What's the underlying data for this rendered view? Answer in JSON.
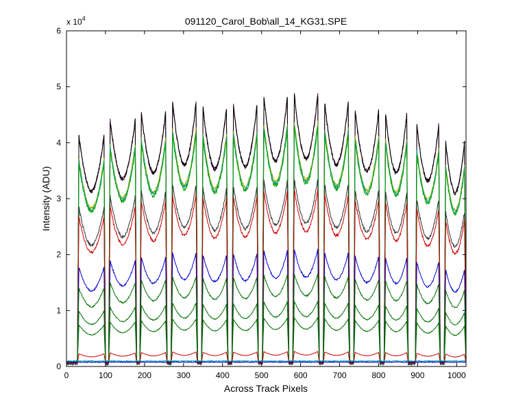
{
  "chart_data": {
    "type": "line",
    "title": "091120_Carol_Bob\\all_14_KG31.SPE",
    "xlabel": "Across Track Pixels",
    "ylabel": "Intensity (ADU)",
    "exponent_base": "x 10",
    "exponent_power": "4",
    "xlim": [
      0,
      1024
    ],
    "ylim": [
      0,
      60000
    ],
    "x_ticks": [
      0,
      100,
      200,
      300,
      400,
      500,
      600,
      700,
      800,
      900,
      1000
    ],
    "y_ticks": [
      0,
      10000,
      20000,
      30000,
      40000,
      50000,
      60000
    ],
    "y_tick_labels": [
      "0",
      "1",
      "2",
      "3",
      "4",
      "5",
      "6"
    ],
    "grid": false,
    "fiber_centers": [
      30,
      99,
      118,
      181,
      196,
      253,
      264,
      334,
      344,
      406,
      422,
      485,
      500,
      563,
      578,
      642,
      658,
      720,
      732,
      797,
      812,
      880,
      900,
      958,
      970
    ],
    "fiber_starts": [
      28,
      108,
      188,
      268,
      346,
      424,
      502,
      580,
      658,
      736,
      814,
      894,
      968
    ],
    "fiber_ends": [
      100,
      180,
      258,
      336,
      414,
      492,
      570,
      648,
      726,
      804,
      876,
      958,
      1024
    ],
    "series_peak_envelope": [
      43500,
      46500,
      48000,
      50000,
      49000,
      49500,
      51000,
      51500,
      50000,
      48500,
      48000,
      46000,
      43000
    ],
    "series": [
      {
        "color": "#4b0040",
        "level": 1.0,
        "values_note": ""
      },
      {
        "color": "#000000",
        "level": 1.0
      },
      {
        "color": "#b0b000",
        "level": 0.9
      },
      {
        "color": "#00a0a0",
        "level": 0.89
      },
      {
        "color": "#00a000",
        "level": 0.88
      },
      {
        "color": "#303030",
        "level": 0.69
      },
      {
        "color": "#d00000",
        "level": 0.65
      },
      {
        "color": "#0000d0",
        "level": 0.43
      },
      {
        "color": "#007000",
        "level": 0.34
      },
      {
        "color": "#007000",
        "level": 0.24
      },
      {
        "color": "#007000",
        "level": 0.18
      },
      {
        "color": "#d00000",
        "level": 0.055
      },
      {
        "color": "#00a0a0",
        "level": 0.012
      },
      {
        "color": "#0000d0",
        "level": 0.008
      }
    ]
  }
}
